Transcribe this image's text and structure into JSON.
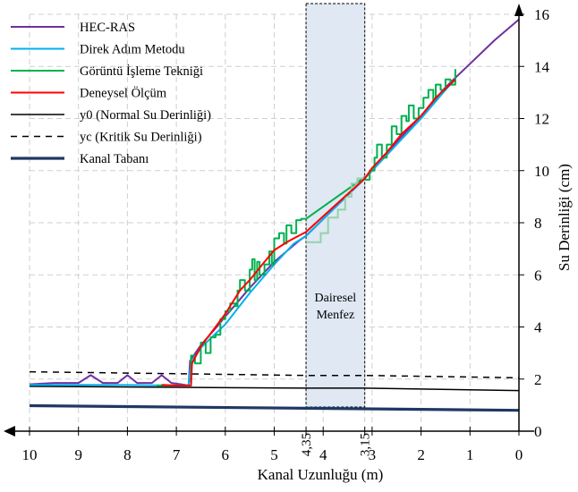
{
  "chart_data": {
    "type": "line",
    "xlabel": "Kanal Uzunluğu (m)",
    "ylabel": "Su Derinliği (cm)",
    "xlim": [
      10,
      0
    ],
    "ylim": [
      0,
      16
    ],
    "x_ticks": [
      "10",
      "9",
      "8",
      "7",
      "6",
      "5",
      "4,35",
      "4",
      "3,15",
      "3",
      "2",
      "1",
      "0"
    ],
    "x_tick_values": [
      10,
      9,
      8,
      7,
      6,
      5,
      4.35,
      4,
      3.15,
      3,
      2,
      1,
      0
    ],
    "y_ticks": [
      "0",
      "2",
      "4",
      "6",
      "8",
      "10",
      "12",
      "14",
      "16"
    ],
    "y_tick_values": [
      0,
      2,
      4,
      6,
      8,
      10,
      12,
      14,
      16
    ],
    "grid": true,
    "legend_position": "top-left",
    "annotation": {
      "line1": "Dairesel",
      "line2": "Menfez",
      "x_range": [
        4.35,
        3.15
      ]
    },
    "series": [
      {
        "name": "HEC-RAS",
        "color": "#7030a0",
        "width": 2,
        "dash": "none",
        "x": [
          10,
          9.5,
          9,
          8.75,
          8.5,
          8.2,
          8,
          7.8,
          7.5,
          7.3,
          7.1,
          6.9,
          6.75,
          6.72,
          6.5,
          6.2,
          6,
          5.5,
          5,
          4.5,
          4.35,
          3.15,
          3,
          2.5,
          2,
          1.5,
          1,
          0.5,
          0
        ],
        "y": [
          1.8,
          1.85,
          1.85,
          2.15,
          1.85,
          1.85,
          2.15,
          1.85,
          1.85,
          2.15,
          1.85,
          1.8,
          1.75,
          2.7,
          3.3,
          3.95,
          4.4,
          5.5,
          6.5,
          7.3,
          7.5,
          9.7,
          10.0,
          11.1,
          12.1,
          13.2,
          14.1,
          15.0,
          15.8
        ]
      },
      {
        "name": "Direk Adım Metodu",
        "color": "#00b0f0",
        "width": 2,
        "dash": "none",
        "x": [
          10,
          9,
          8,
          7.5,
          7,
          6.75,
          6.7,
          6.5,
          6,
          5.5,
          5,
          4.6,
          4.35,
          3.15,
          3,
          2.5,
          2,
          1.5,
          1.3
        ],
        "y": [
          1.78,
          1.78,
          1.77,
          1.76,
          1.76,
          1.76,
          2.6,
          3.2,
          4.1,
          5.3,
          6.4,
          7.2,
          7.5,
          9.7,
          10.0,
          11.0,
          12.0,
          13.1,
          13.5
        ]
      },
      {
        "name": "Görüntü İşleme Tekniği",
        "color": "#00b050",
        "width": 2,
        "dash": "none",
        "x": [
          7.4,
          7.2,
          7.0,
          6.8,
          6.7,
          6.7,
          6.62,
          6.62,
          6.5,
          6.5,
          6.4,
          6.4,
          6.3,
          6.3,
          6.2,
          6.2,
          6.1,
          6.1,
          6.0,
          6.0,
          5.9,
          5.9,
          5.8,
          5.8,
          5.75,
          5.75,
          5.7,
          5.7,
          5.6,
          5.6,
          5.5,
          5.5,
          5.45,
          5.45,
          5.4,
          5.4,
          5.35,
          5.35,
          5.3,
          5.3,
          5.2,
          5.2,
          5.1,
          5.1,
          5.05,
          5.05,
          5.0,
          5.0,
          4.9,
          4.9,
          4.8,
          4.8,
          4.75,
          4.75,
          4.65,
          4.65,
          4.55,
          4.55,
          4.45,
          4.45,
          4.35,
          3.15,
          3.15,
          3.05,
          3.05,
          2.95,
          2.95,
          2.9,
          2.9,
          2.8,
          2.8,
          2.7,
          2.7,
          2.6,
          2.6,
          2.5,
          2.5,
          2.4,
          2.4,
          2.3,
          2.3,
          2.25,
          2.25,
          2.15,
          2.15,
          2.05,
          2.05,
          1.95,
          1.95,
          1.85,
          1.85,
          1.75,
          1.75,
          1.7,
          1.7,
          1.6,
          1.6,
          1.5,
          1.5,
          1.4,
          1.4,
          1.3,
          1.3
        ],
        "y": [
          1.75,
          1.75,
          1.75,
          1.75,
          1.75,
          2.9,
          2.9,
          2.6,
          2.6,
          3.4,
          3.4,
          3.0,
          3.0,
          3.6,
          3.6,
          3.7,
          3.7,
          4.3,
          4.3,
          4.6,
          4.6,
          4.9,
          4.9,
          4.8,
          4.8,
          5.4,
          5.4,
          5.8,
          5.8,
          5.4,
          5.4,
          6.2,
          6.2,
          6.6,
          6.6,
          5.8,
          5.8,
          6.5,
          6.5,
          6.0,
          6.0,
          6.4,
          6.4,
          6.9,
          6.9,
          6.4,
          6.4,
          7.4,
          7.4,
          7.6,
          7.6,
          7.2,
          7.2,
          7.9,
          7.9,
          7.6,
          7.6,
          8.1,
          8.1,
          8.15,
          8.15,
          9.75,
          9.65,
          9.65,
          10.0,
          10.0,
          10.5,
          10.5,
          11.0,
          11.0,
          10.5,
          10.5,
          11.0,
          11.0,
          11.7,
          11.7,
          11.4,
          11.4,
          12.1,
          12.1,
          11.9,
          11.9,
          12.5,
          12.5,
          12.0,
          12.0,
          12.4,
          12.4,
          12.8,
          12.8,
          13.1,
          13.1,
          12.7,
          12.7,
          13.3,
          13.3,
          13.1,
          13.1,
          13.5,
          13.5,
          13.3,
          13.3,
          13.9
        ]
      },
      {
        "name": "Deneysel Ölçüm",
        "color": "#ff0000",
        "width": 2,
        "dash": "none",
        "x": [
          7.3,
          7.0,
          6.7,
          6.68,
          6.5,
          6.3,
          6.0,
          5.7,
          5.5,
          5.2,
          5.0,
          4.7,
          4.35,
          3.15,
          3.0,
          2.7,
          2.4,
          2.0,
          1.7,
          1.3
        ],
        "y": [
          1.78,
          1.75,
          1.75,
          2.6,
          3.25,
          3.75,
          4.5,
          5.4,
          5.8,
          6.5,
          6.95,
          7.3,
          7.65,
          9.7,
          10.1,
          10.7,
          11.4,
          12.1,
          12.8,
          13.5
        ]
      },
      {
        "name": "y0 (Normal Su Derinliği)",
        "color": "#000000",
        "width": 1.5,
        "dash": "none",
        "x": [
          10,
          4.35,
          3.15,
          0
        ],
        "y": [
          1.72,
          1.65,
          1.65,
          1.56
        ]
      },
      {
        "name": "yc (Kritik Su Derinliği)",
        "color": "#000000",
        "width": 1.5,
        "dash": "7,6",
        "x": [
          10,
          4.35,
          3.15,
          0
        ],
        "y": [
          2.28,
          2.14,
          2.14,
          2.05
        ]
      },
      {
        "name": "Kanal Tabanı",
        "color": "#1f3864",
        "width": 3.2,
        "dash": "none",
        "x": [
          10,
          4.35,
          3.15,
          0
        ],
        "y": [
          0.98,
          0.88,
          0.86,
          0.8
        ]
      }
    ],
    "culvert_profile": {
      "color": "#93d3a8",
      "x": [
        4.35,
        4.05,
        4.05,
        3.9,
        3.9,
        3.7,
        3.7,
        3.55,
        3.55,
        3.42,
        3.42,
        3.3,
        3.3,
        3.15
      ],
      "y": [
        7.25,
        7.25,
        7.6,
        7.6,
        8.2,
        8.2,
        8.5,
        8.5,
        9.0,
        9.0,
        9.5,
        9.5,
        9.7,
        9.7
      ]
    }
  }
}
